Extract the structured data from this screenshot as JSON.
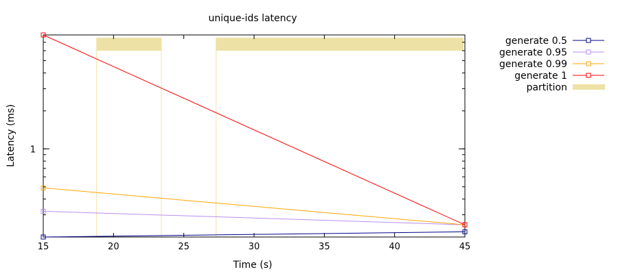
{
  "chart_data": {
    "type": "line",
    "title": "unique-ids latency",
    "xlabel": "Time (s)",
    "ylabel": "Latency (ms)",
    "xlim": [
      15,
      45
    ],
    "ylim": [
      0.2,
      8
    ],
    "yscale": "log",
    "grid": false,
    "legend_position": "outside-right",
    "xticks": [
      15,
      20,
      25,
      30,
      35,
      40,
      45
    ],
    "yticks": [
      1
    ],
    "series": [
      {
        "name": "generate 0.5",
        "color": "#00008b",
        "marker": "open-square",
        "x": [
          15,
          45
        ],
        "y": [
          0.2,
          0.22
        ]
      },
      {
        "name": "generate 0.95",
        "color": "#b88ef0",
        "marker": "open-square",
        "x": [
          15,
          45
        ],
        "y": [
          0.32,
          0.25
        ]
      },
      {
        "name": "generate 0.99",
        "color": "#ffa500",
        "marker": "open-square",
        "x": [
          15,
          45
        ],
        "y": [
          0.49,
          0.25
        ]
      },
      {
        "name": "generate 1",
        "color": "#ff0000",
        "marker": "open-square",
        "x": [
          15,
          45
        ],
        "y": [
          8,
          0.25
        ]
      }
    ],
    "partition": {
      "name": "partition",
      "color": "#eee1a6",
      "line_color": "#f2e2a0",
      "intervals": [
        [
          18.8,
          23.4
        ],
        [
          27.3,
          45
        ]
      ]
    }
  }
}
